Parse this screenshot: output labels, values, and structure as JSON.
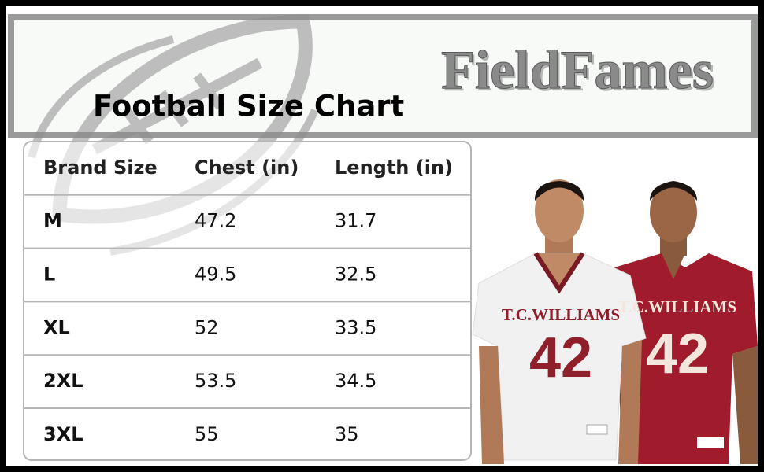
{
  "brand": "FieldFames",
  "title": "Football Size Chart",
  "table": {
    "header": [
      "Brand Size",
      "Chest (in)",
      "Length (in)"
    ],
    "rows": [
      [
        "M",
        "47.2",
        "31.7"
      ],
      [
        "L",
        "49.5",
        "32.5"
      ],
      [
        "XL",
        "52",
        "33.5"
      ],
      [
        "2XL",
        "53.5",
        "34.5"
      ],
      [
        "3XL",
        "55",
        "35"
      ]
    ]
  },
  "jerseys": [
    {
      "team": "T.C.WILLIAMS",
      "number": "42"
    },
    {
      "team": "T.C.WILLIAMS",
      "number": "42"
    }
  ]
}
